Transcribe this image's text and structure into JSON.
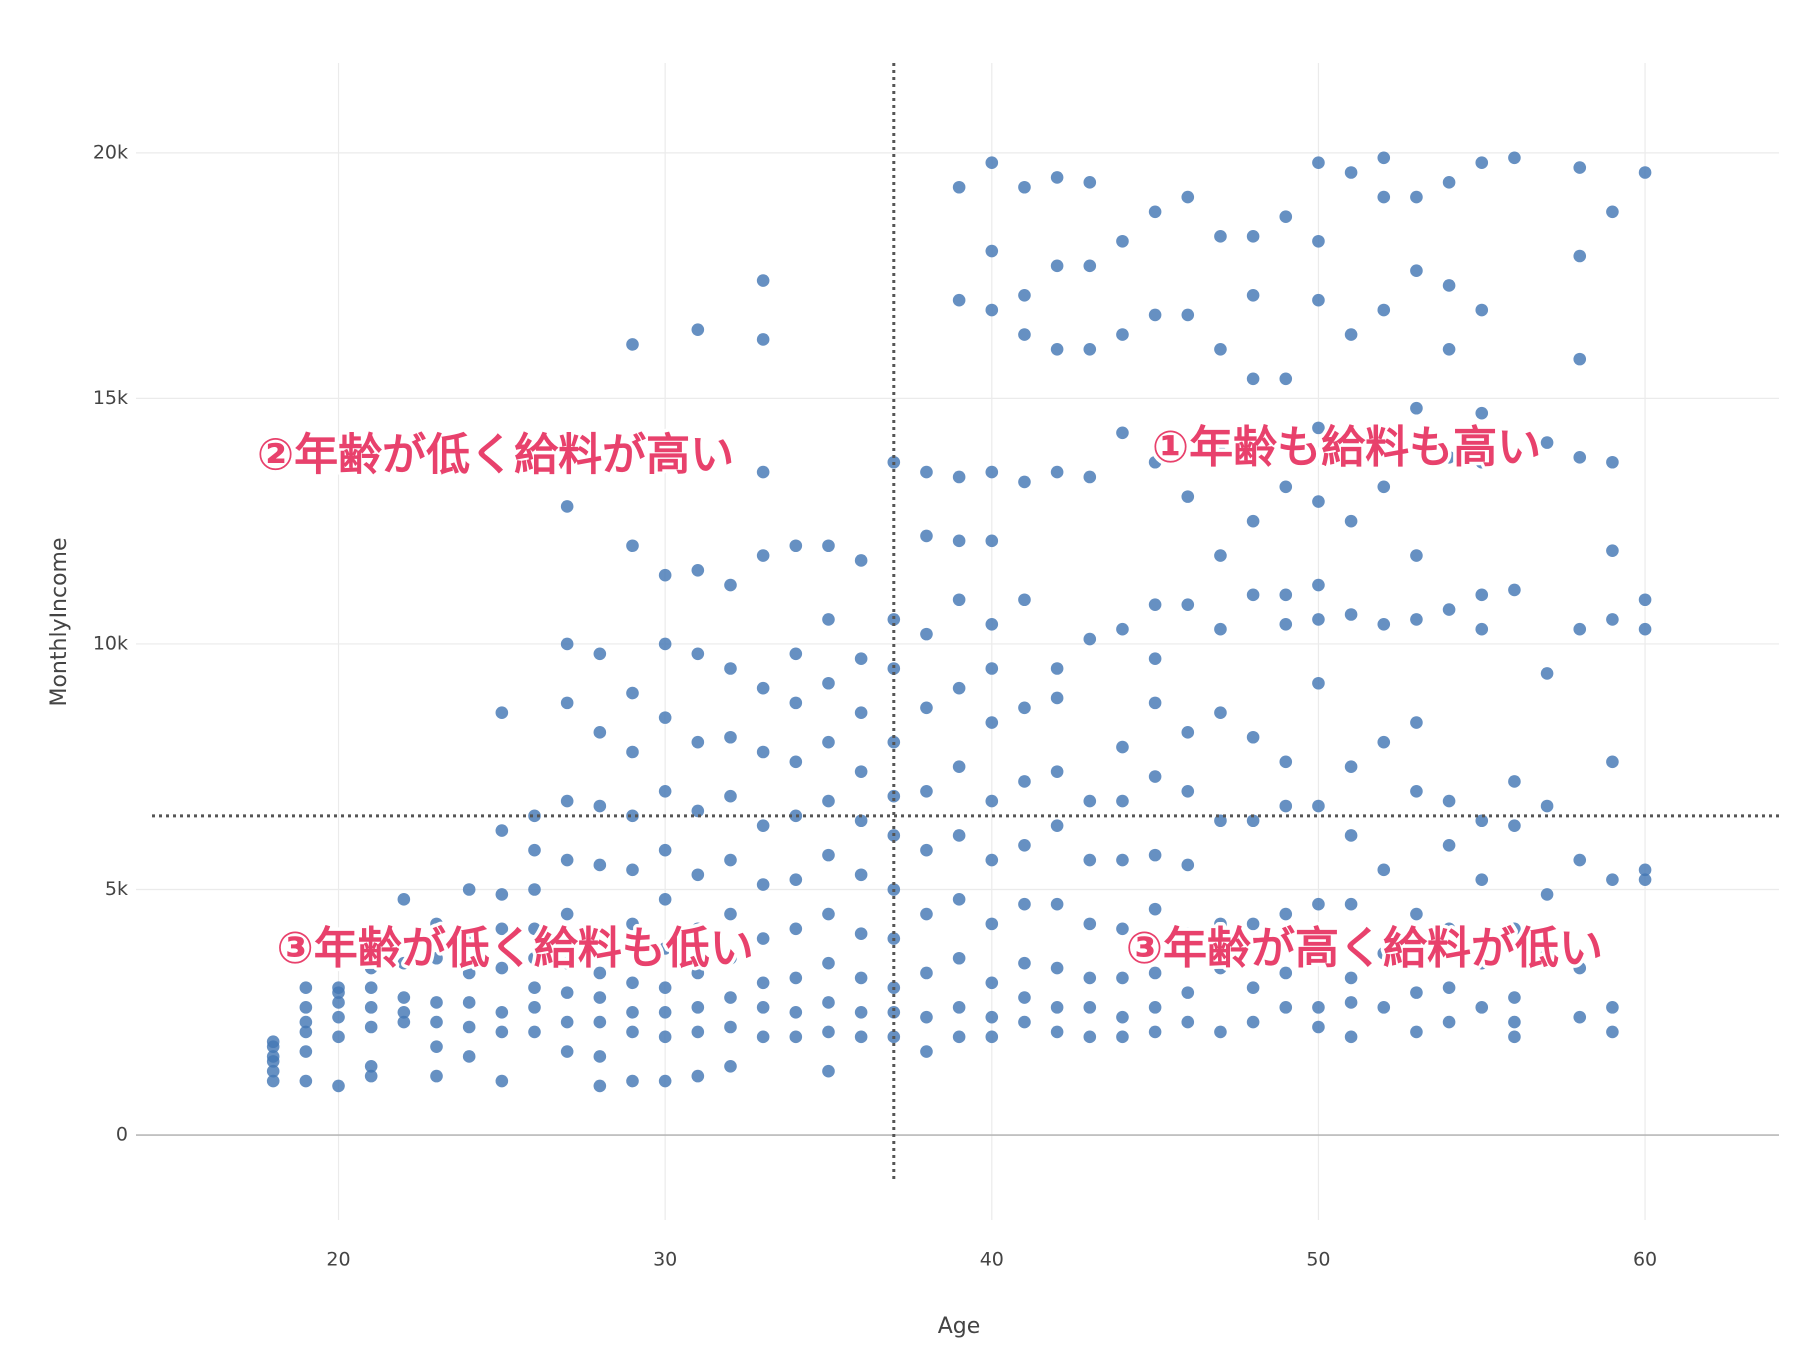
{
  "chart_data": {
    "type": "scatter",
    "x_label": "Age",
    "y_label": "MonthlyIncome",
    "color": "#4477b4",
    "grid": true,
    "xlim": [
      13.8,
      64.1
    ],
    "ylim": [
      -1730,
      21830
    ],
    "xticks": [
      20,
      30,
      40,
      50,
      60
    ],
    "yticks": [
      0,
      {
        "value": 5000,
        "label": "5k"
      },
      {
        "value": 10000,
        "label": "10k"
      },
      {
        "value": 15000,
        "label": "15k"
      },
      {
        "value": 20000,
        "label": "20k"
      }
    ],
    "reference_lines": {
      "x": 37,
      "y": 6500
    },
    "annotations": [
      {
        "text": "②年齢が低く給料が高い",
        "x": 17.5,
        "y": 13800
      },
      {
        "text": "①年齢も給料も高い",
        "x": 44.9,
        "y": 13950
      },
      {
        "text": "③年齢が低く給料も低い",
        "x": 18.1,
        "y": 3750
      },
      {
        "text": "③年齢が高く給料が低い",
        "x": 44.1,
        "y": 3750
      }
    ],
    "x": [
      18,
      18,
      18,
      18,
      18,
      18,
      19,
      19,
      19,
      19,
      19,
      19,
      20,
      20,
      20,
      20,
      20,
      20,
      21,
      21,
      21,
      21,
      21,
      21,
      22,
      22,
      22,
      22,
      22,
      23,
      23,
      23,
      23,
      23,
      23,
      24,
      24,
      24,
      24,
      24,
      24,
      25,
      25,
      25,
      25,
      25,
      25,
      25,
      25,
      26,
      26,
      26,
      26,
      26,
      26,
      26,
      26,
      27,
      27,
      27,
      27,
      27,
      27,
      27,
      27,
      27,
      27,
      28,
      28,
      28,
      28,
      28,
      28,
      28,
      28,
      28,
      28,
      29,
      29,
      29,
      29,
      29,
      29,
      29,
      29,
      29,
      29,
      29,
      30,
      30,
      30,
      30,
      30,
      30,
      30,
      30,
      30,
      30,
      30,
      31,
      31,
      31,
      31,
      31,
      31,
      31,
      31,
      31,
      31,
      31,
      32,
      32,
      32,
      32,
      32,
      32,
      32,
      32,
      32,
      32,
      33,
      33,
      33,
      33,
      33,
      33,
      33,
      33,
      33,
      33,
      33,
      33,
      34,
      34,
      34,
      34,
      34,
      34,
      34,
      34,
      34,
      34,
      35,
      35,
      35,
      35,
      35,
      35,
      35,
      35,
      35,
      35,
      35,
      36,
      36,
      36,
      36,
      36,
      36,
      36,
      36,
      36,
      36,
      37,
      37,
      37,
      37,
      37,
      37,
      37,
      37,
      37,
      37,
      37,
      38,
      38,
      38,
      38,
      38,
      38,
      38,
      38,
      38,
      38,
      39,
      39,
      39,
      39,
      39,
      39,
      39,
      39,
      39,
      39,
      39,
      39,
      40,
      40,
      40,
      40,
      40,
      40,
      40,
      40,
      40,
      40,
      40,
      40,
      40,
      40,
      41,
      41,
      41,
      41,
      41,
      41,
      41,
      41,
      41,
      41,
      41,
      41,
      42,
      42,
      42,
      42,
      42,
      42,
      42,
      42,
      42,
      42,
      42,
      42,
      43,
      43,
      43,
      43,
      43,
      43,
      43,
      43,
      43,
      43,
      43,
      44,
      44,
      44,
      44,
      44,
      44,
      44,
      44,
      44,
      44,
      44,
      45,
      45,
      45,
      45,
      45,
      45,
      45,
      45,
      45,
      45,
      45,
      45,
      46,
      46,
      46,
      46,
      46,
      46,
      46,
      46,
      46,
      46,
      47,
      47,
      47,
      47,
      47,
      47,
      47,
      47,
      47,
      47,
      48,
      48,
      48,
      48,
      48,
      48,
      48,
      48,
      48,
      48,
      49,
      49,
      49,
      49,
      49,
      49,
      49,
      49,
      49,
      49,
      50,
      50,
      50,
      50,
      50,
      50,
      50,
      50,
      50,
      50,
      50,
      50,
      50,
      51,
      51,
      51,
      51,
      51,
      51,
      51,
      51,
      51,
      51,
      52,
      52,
      52,
      52,
      52,
      52,
      52,
      52,
      52,
      53,
      53,
      53,
      53,
      53,
      53,
      53,
      53,
      53,
      53,
      54,
      54,
      54,
      54,
      54,
      54,
      54,
      54,
      54,
      54,
      55,
      55,
      55,
      55,
      55,
      55,
      55,
      55,
      55,
      55,
      56,
      56,
      56,
      56,
      56,
      56,
      56,
      56,
      57,
      57,
      57,
      57,
      57,
      58,
      58,
      58,
      58,
      58,
      58,
      58,
      58,
      59,
      59,
      59,
      59,
      59,
      59,
      59,
      59,
      60,
      60,
      60,
      60,
      60
    ],
    "y": [
      1100,
      1300,
      1500,
      1600,
      1800,
      1900,
      1100,
      1700,
      2100,
      2300,
      2600,
      3000,
      1000,
      2000,
      2400,
      2700,
      2900,
      3000,
      1200,
      1400,
      2200,
      2600,
      3000,
      3400,
      2300,
      2500,
      2800,
      3500,
      4800,
      1200,
      1800,
      2300,
      2700,
      3600,
      4300,
      1600,
      2200,
      2700,
      3300,
      4100,
      5000,
      1100,
      2100,
      2500,
      3400,
      4200,
      4900,
      6200,
      8600,
      2100,
      2600,
      3000,
      3600,
      4200,
      5000,
      5800,
      6500,
      1700,
      2300,
      2900,
      3500,
      4500,
      5600,
      6800,
      8800,
      10000,
      12800,
      1000,
      1600,
      2300,
      2800,
      3300,
      4100,
      5500,
      6700,
      8200,
      9800,
      1100,
      2100,
      2500,
      3100,
      4300,
      5400,
      6500,
      7800,
      9000,
      12000,
      16100,
      1100,
      2000,
      2500,
      3000,
      3800,
      4800,
      5800,
      7000,
      8500,
      10000,
      11400,
      1200,
      2100,
      2600,
      3300,
      4200,
      5300,
      6600,
      8000,
      9800,
      11500,
      16400,
      1400,
      2200,
      2800,
      3600,
      4500,
      5600,
      6900,
      8100,
      9500,
      11200,
      2000,
      2600,
      3100,
      4000,
      5100,
      6300,
      7800,
      9100,
      11800,
      13500,
      16200,
      17400,
      2000,
      2500,
      3200,
      4200,
      5200,
      6500,
      7600,
      8800,
      9800,
      12000,
      1300,
      2100,
      2700,
      3500,
      4500,
      5700,
      6800,
      8000,
      9200,
      10500,
      12000,
      2000,
      2500,
      3200,
      4100,
      5300,
      6400,
      7400,
      8600,
      9700,
      11700,
      2000,
      2500,
      3000,
      4000,
      5000,
      6100,
      6900,
      8000,
      9500,
      10500,
      13700,
      1700,
      2400,
      3300,
      4500,
      5800,
      7000,
      8700,
      10200,
      12200,
      13500,
      2000,
      2600,
      3600,
      4800,
      6100,
      7500,
      9100,
      10900,
      12100,
      13400,
      17000,
      19300,
      2000,
      2400,
      3100,
      4300,
      5600,
      6800,
      8400,
      9500,
      10400,
      12100,
      13500,
      16800,
      18000,
      19800,
      2300,
      2800,
      3500,
      4700,
      5900,
      7200,
      8700,
      10900,
      13300,
      16300,
      17100,
      19300,
      2100,
      2600,
      3400,
      4700,
      6300,
      7400,
      8900,
      9500,
      13500,
      16000,
      17700,
      19500,
      2000,
      2600,
      3200,
      4300,
      5600,
      6800,
      10100,
      13400,
      16000,
      17700,
      19400,
      2000,
      2400,
      3200,
      4200,
      5600,
      6800,
      7900,
      10300,
      14300,
      16300,
      18200,
      2100,
      2600,
      3300,
      4600,
      5700,
      7300,
      8800,
      9700,
      10800,
      13700,
      16700,
      18800,
      2300,
      2900,
      4100,
      5500,
      7000,
      8200,
      10800,
      13000,
      16700,
      19100,
      2100,
      3400,
      4300,
      6400,
      8600,
      10300,
      11800,
      13900,
      16000,
      18300,
      2300,
      3000,
      4300,
      6400,
      8100,
      11000,
      12500,
      15400,
      17100,
      18300,
      2600,
      3300,
      4500,
      6700,
      7600,
      10400,
      11000,
      13200,
      15400,
      18700,
      2200,
      2600,
      3600,
      4700,
      6700,
      9200,
      10500,
      11200,
      12900,
      14400,
      17000,
      18200,
      19800,
      2000,
      2700,
      3200,
      4700,
      6100,
      7500,
      10600,
      12500,
      16300,
      19600,
      2600,
      3700,
      5400,
      8000,
      10400,
      13200,
      16800,
      19100,
      19900,
      2100,
      2900,
      4500,
      7000,
      8400,
      10500,
      11800,
      14800,
      17600,
      19100,
      2300,
      3000,
      4200,
      5900,
      6800,
      10700,
      13800,
      16000,
      17300,
      19400,
      2600,
      3500,
      5200,
      6400,
      10300,
      11000,
      13700,
      14700,
      16800,
      19800,
      2000,
      2300,
      2800,
      4200,
      6300,
      7200,
      11100,
      19900,
      3700,
      4900,
      6700,
      9400,
      14100,
      2400,
      3400,
      5600,
      10300,
      13800,
      15800,
      17900,
      19700,
      2100,
      2600,
      5200,
      7600,
      10500,
      11900,
      13700,
      18800,
      5200,
      5400,
      10300,
      10900,
      19600
    ]
  }
}
